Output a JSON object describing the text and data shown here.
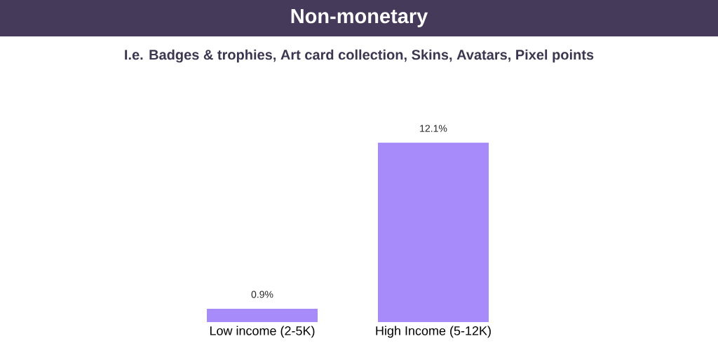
{
  "chart_data": {
    "type": "bar",
    "title": "Non-monetary",
    "subtitle": "I.e. Badges & trophies, Art card collection, Skins, Avatars, Pixel points",
    "categories": [
      "Low income (2-5K)",
      "High Income (5-12K)"
    ],
    "values": [
      0.9,
      12.1
    ],
    "value_labels": [
      "0.9%",
      "12.1%"
    ],
    "color": "#a78bfa"
  }
}
